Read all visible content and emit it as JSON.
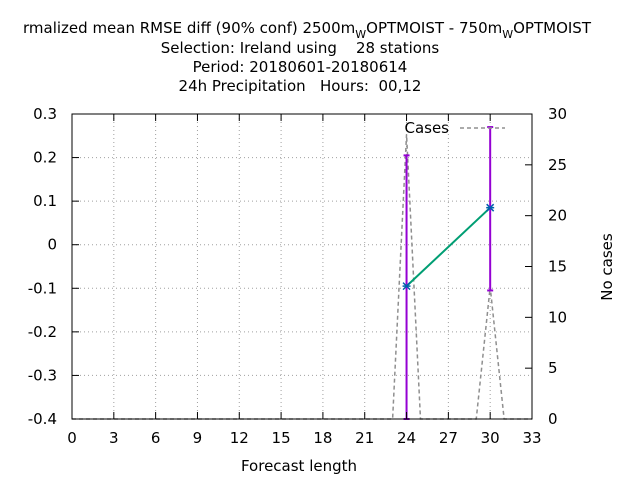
{
  "chart_data": {
    "type": "line",
    "title": {
      "line1_parts": [
        "rmalized mean RMSE diff (90% conf) 2500m",
        "W",
        "OPTMOIST - 750m",
        "W",
        "OPTMOIST"
      ],
      "line2_prefix": "Selection: Ireland using",
      "line2_count": "28 stations",
      "line3": "Period: 20180601-20180614",
      "line4_param": "24h Precipitation",
      "line4_hours": "Hours:  00,12"
    },
    "xlabel": "Forecast length",
    "ylabel": "",
    "y2label": "No cases",
    "xlim": [
      0,
      33
    ],
    "ylim": [
      -0.4,
      0.3
    ],
    "y2lim": [
      0,
      30
    ],
    "xticks": [
      "0",
      "3",
      "6",
      "9",
      "12",
      "15",
      "18",
      "21",
      "24",
      "27",
      "30",
      "33"
    ],
    "yticks": [
      "-0.4",
      "-0.3",
      "-0.2",
      "-0.1",
      "0",
      "0.1",
      "0.2",
      "0.3"
    ],
    "y2ticks": [
      "0",
      "5",
      "10",
      "15",
      "20",
      "25",
      "30"
    ],
    "grid": true,
    "legend_position": "top-right",
    "series": [
      {
        "style": "line-with-errorbars",
        "color": "#009e73",
        "errorbar_color": "#9400d3",
        "marker_color": "#0060ad",
        "x": [
          24,
          30
        ],
        "y": [
          -0.095,
          0.085
        ],
        "y_low": [
          -0.4,
          -0.105
        ],
        "y_high": [
          0.205,
          0.27
        ]
      },
      {
        "name": "Cases",
        "style": "dashed",
        "color": "#8f8f8f",
        "axis": "y2",
        "x": [
          0,
          23,
          24,
          25,
          29,
          30,
          31,
          33
        ],
        "y": [
          0,
          0,
          28,
          0,
          0,
          13,
          0,
          0
        ]
      }
    ]
  }
}
